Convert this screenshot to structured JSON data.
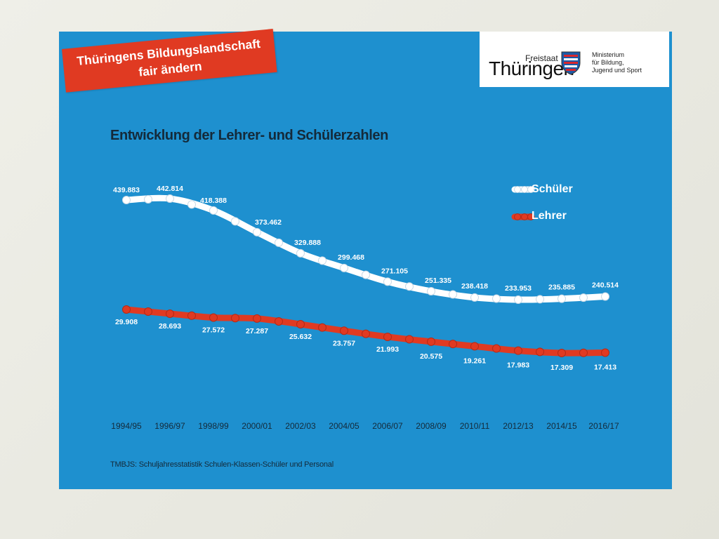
{
  "banner": {
    "line1": "Thüringens Bildungslandschaft",
    "line2": "fair ändern"
  },
  "logo": {
    "freistaat": "Freistaat",
    "name": "Thüringen",
    "ministry_line1": "Ministerium",
    "ministry_line2": "für Bildung,",
    "ministry_line3": "Jugend und Sport"
  },
  "source_note": "TMBJS: Schuljahresstatistik Schulen-Klassen-Schüler und Personal",
  "colors": {
    "background": "#1e90cf",
    "schueler": "#ffffff",
    "lehrer": "#e03a22",
    "banner": "#e03a22"
  },
  "chart_data": {
    "type": "line",
    "title": "Entwicklung der Lehrer- und Schülerzahlen",
    "xlabel": "",
    "ylabel": "",
    "legend_position": "top-right",
    "grid": false,
    "categories": [
      "1994/95",
      "1996/97",
      "1998/99",
      "2000/01",
      "2002/03",
      "2004/05",
      "2006/07",
      "2008/09",
      "2010/11",
      "2012/13",
      "2014/15",
      "2016/17"
    ],
    "series": [
      {
        "name": "Schüler",
        "color": "#ffffff",
        "values": [
          439883,
          442814,
          418388,
          373462,
          329888,
          299468,
          271105,
          251335,
          238418,
          233953,
          235885,
          240514
        ],
        "labels": [
          "439.883",
          "442.814",
          "418.388",
          "373.462",
          "329.888",
          "299.468",
          "271.105",
          "251.335",
          "238.418",
          "233.953",
          "235.885",
          "240.514"
        ]
      },
      {
        "name": "Lehrer",
        "color": "#e03a22",
        "values": [
          29908,
          28693,
          27572,
          27287,
          25632,
          23757,
          21993,
          20575,
          19261,
          17983,
          17309,
          17413
        ],
        "labels": [
          "29.908",
          "28.693",
          "27.572",
          "27.287",
          "25.632",
          "23.757",
          "21.993",
          "20.575",
          "19.261",
          "17.983",
          "17.309",
          "17.413"
        ]
      }
    ]
  }
}
